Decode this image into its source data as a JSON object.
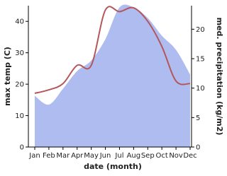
{
  "chart_data": {
    "type": "line-area",
    "x_label": "date (month)",
    "y_label": "max temp (C)",
    "y2_label": "med. precipitation (kg/m2)",
    "categories": [
      "Jan",
      "Feb",
      "Mar",
      "Apr",
      "May",
      "Jun",
      "Jul",
      "Aug",
      "Sep",
      "Oct",
      "Nov",
      "Dec"
    ],
    "ylim": [
      0,
      45
    ],
    "yticks": [
      0,
      10,
      20,
      30,
      40
    ],
    "y2lim": [
      0,
      24
    ],
    "y2ticks": [
      0,
      5,
      10,
      15,
      20
    ],
    "series": [
      {
        "name": "max temp",
        "type": "line",
        "color": "#b5575a",
        "values": [
          17.1,
          18.2,
          20.2,
          26,
          26,
          43.6,
          43.1,
          44.3,
          40,
          32,
          21,
          20.2
        ]
      },
      {
        "name": "med. precipitation",
        "type": "area",
        "axis": "y2",
        "color": "#aebcf0",
        "values": [
          8.7,
          7.2,
          9.9,
          12.9,
          14.7,
          18.3,
          23.7,
          23.7,
          21.9,
          18.9,
          16.5,
          12.3
        ]
      }
    ]
  }
}
